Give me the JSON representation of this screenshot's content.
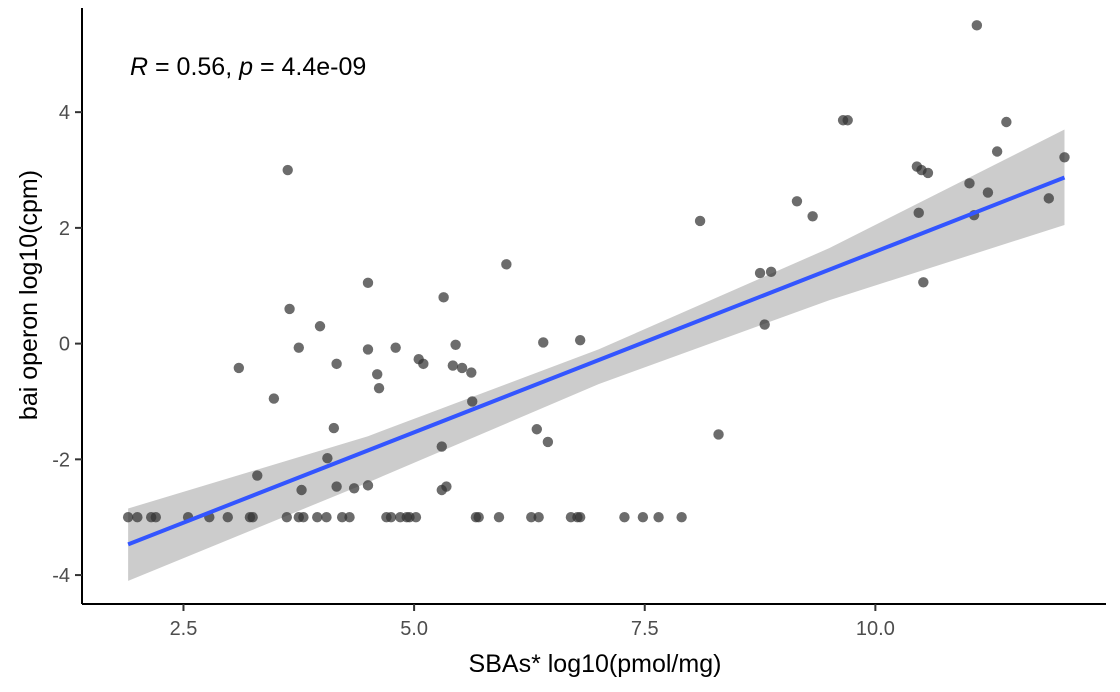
{
  "chart_data": {
    "type": "scatter",
    "title": "",
    "xlabel": "SBAs* log10(pmol/mg)",
    "ylabel": "bai operon log10(cpm)",
    "xlim": [
      1.4,
      12.5
    ],
    "ylim": [
      -4.5,
      5.8
    ],
    "x_ticks": [
      2.5,
      5.0,
      7.5,
      10.0
    ],
    "x_tick_labels": [
      "2.5",
      "5.0",
      "7.5",
      "10.0"
    ],
    "y_ticks": [
      -4,
      -2,
      0,
      2,
      4
    ],
    "y_tick_labels": [
      "-4",
      "-2",
      "0",
      "2",
      "4"
    ],
    "grid": false,
    "annotation": {
      "r_symbol": "R",
      "r_text": " = 0.56, ",
      "p_symbol": "p",
      "p_text": " = 4.4e-09"
    },
    "regression": {
      "x": [
        1.9,
        12.05
      ],
      "y": [
        -3.47,
        2.87
      ],
      "band_x": [
        1.9,
        4.5,
        7.0,
        9.5,
        12.05
      ],
      "band_lower": [
        -4.1,
        -2.4,
        -0.7,
        0.75,
        2.05
      ],
      "band_upper": [
        -2.85,
        -1.6,
        -0.1,
        1.65,
        3.7
      ]
    },
    "colors": {
      "points": "#333333",
      "line": "#3355ff",
      "band": "#cccccc",
      "axis": "#000000",
      "tick_labels": "#4d4d4d"
    },
    "points": [
      {
        "x": 1.9,
        "y": -3.0
      },
      {
        "x": 2.0,
        "y": -3.0
      },
      {
        "x": 2.15,
        "y": -3.0
      },
      {
        "x": 2.2,
        "y": -3.0
      },
      {
        "x": 2.55,
        "y": -3.0
      },
      {
        "x": 2.78,
        "y": -3.0
      },
      {
        "x": 2.98,
        "y": -3.0
      },
      {
        "x": 3.22,
        "y": -3.0
      },
      {
        "x": 3.25,
        "y": -3.0
      },
      {
        "x": 3.62,
        "y": -3.0
      },
      {
        "x": 3.75,
        "y": -3.0
      },
      {
        "x": 3.8,
        "y": -3.0
      },
      {
        "x": 3.95,
        "y": -3.0
      },
      {
        "x": 4.05,
        "y": -3.0
      },
      {
        "x": 4.22,
        "y": -3.0
      },
      {
        "x": 4.3,
        "y": -3.0
      },
      {
        "x": 4.7,
        "y": -3.0
      },
      {
        "x": 4.75,
        "y": -3.0
      },
      {
        "x": 4.85,
        "y": -3.0
      },
      {
        "x": 4.92,
        "y": -3.0
      },
      {
        "x": 4.95,
        "y": -3.0
      },
      {
        "x": 5.02,
        "y": -3.0
      },
      {
        "x": 5.67,
        "y": -3.0
      },
      {
        "x": 5.7,
        "y": -3.0
      },
      {
        "x": 5.92,
        "y": -3.0
      },
      {
        "x": 6.27,
        "y": -3.0
      },
      {
        "x": 6.35,
        "y": -3.0
      },
      {
        "x": 6.7,
        "y": -3.0
      },
      {
        "x": 6.77,
        "y": -3.0
      },
      {
        "x": 6.8,
        "y": -3.0
      },
      {
        "x": 7.28,
        "y": -3.0
      },
      {
        "x": 7.48,
        "y": -3.0
      },
      {
        "x": 7.65,
        "y": -3.0
      },
      {
        "x": 7.9,
        "y": -3.0
      },
      {
        "x": 3.1,
        "y": -0.42
      },
      {
        "x": 3.48,
        "y": -0.95
      },
      {
        "x": 3.3,
        "y": -2.28
      },
      {
        "x": 3.63,
        "y": 3.0
      },
      {
        "x": 3.65,
        "y": 0.6
      },
      {
        "x": 3.75,
        "y": -0.07
      },
      {
        "x": 3.78,
        "y": -2.53
      },
      {
        "x": 3.98,
        "y": 0.3
      },
      {
        "x": 4.06,
        "y": -1.98
      },
      {
        "x": 4.13,
        "y": -1.46
      },
      {
        "x": 4.16,
        "y": -0.35
      },
      {
        "x": 4.16,
        "y": -2.47
      },
      {
        "x": 4.35,
        "y": -2.5
      },
      {
        "x": 4.5,
        "y": -2.45
      },
      {
        "x": 4.5,
        "y": 1.05
      },
      {
        "x": 4.5,
        "y": -0.1
      },
      {
        "x": 4.6,
        "y": -0.53
      },
      {
        "x": 4.62,
        "y": -0.77
      },
      {
        "x": 4.8,
        "y": -0.07
      },
      {
        "x": 5.05,
        "y": -0.27
      },
      {
        "x": 5.1,
        "y": -0.35
      },
      {
        "x": 5.3,
        "y": -1.78
      },
      {
        "x": 5.3,
        "y": -2.53
      },
      {
        "x": 5.32,
        "y": 0.8
      },
      {
        "x": 5.35,
        "y": -2.47
      },
      {
        "x": 5.42,
        "y": -0.38
      },
      {
        "x": 5.45,
        "y": -0.02
      },
      {
        "x": 5.52,
        "y": -0.42
      },
      {
        "x": 5.62,
        "y": -0.5
      },
      {
        "x": 5.63,
        "y": -1.0
      },
      {
        "x": 6.0,
        "y": 1.37
      },
      {
        "x": 6.33,
        "y": -1.48
      },
      {
        "x": 6.4,
        "y": 0.02
      },
      {
        "x": 6.45,
        "y": -1.7
      },
      {
        "x": 6.8,
        "y": 0.06
      },
      {
        "x": 8.1,
        "y": 2.12
      },
      {
        "x": 8.3,
        "y": -1.57
      },
      {
        "x": 8.75,
        "y": 1.22
      },
      {
        "x": 8.8,
        "y": 0.33
      },
      {
        "x": 8.87,
        "y": 1.24
      },
      {
        "x": 9.15,
        "y": 2.46
      },
      {
        "x": 9.32,
        "y": 2.2
      },
      {
        "x": 9.65,
        "y": 3.86
      },
      {
        "x": 9.7,
        "y": 3.86
      },
      {
        "x": 10.45,
        "y": 3.06
      },
      {
        "x": 10.47,
        "y": 2.26
      },
      {
        "x": 10.5,
        "y": 3.0
      },
      {
        "x": 10.52,
        "y": 1.06
      },
      {
        "x": 10.57,
        "y": 2.95
      },
      {
        "x": 11.02,
        "y": 2.77
      },
      {
        "x": 11.07,
        "y": 2.22
      },
      {
        "x": 11.1,
        "y": 5.5
      },
      {
        "x": 11.22,
        "y": 2.61
      },
      {
        "x": 11.32,
        "y": 3.32
      },
      {
        "x": 11.42,
        "y": 3.83
      },
      {
        "x": 11.88,
        "y": 2.51
      },
      {
        "x": 12.05,
        "y": 3.22
      }
    ]
  }
}
